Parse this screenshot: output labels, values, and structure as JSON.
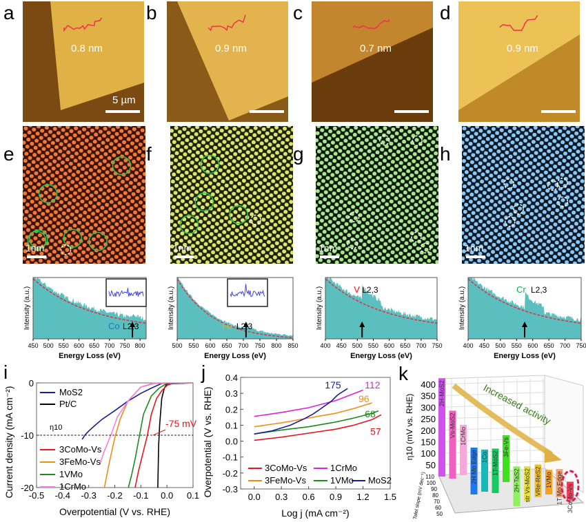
{
  "panel_letters": [
    "a",
    "b",
    "c",
    "d",
    "e",
    "f",
    "g",
    "h",
    "i",
    "j",
    "k"
  ],
  "afm": [
    {
      "letter": "a",
      "height_label": "0.8 nm",
      "scale_label": "5 µm"
    },
    {
      "letter": "b",
      "height_label": "0.9 nm",
      "scale_label": ""
    },
    {
      "letter": "c",
      "height_label": "0.7 nm",
      "scale_label": ""
    },
    {
      "letter": "d",
      "height_label": "0.9 nm",
      "scale_label": ""
    }
  ],
  "stem": [
    {
      "letter": "e",
      "scale_label": "1nm",
      "palette": {
        "bg": "#3a1206",
        "dot": "#f07a3a"
      },
      "green_circles": 6,
      "dashed_circles": 1
    },
    {
      "letter": "f",
      "scale_label": "1nm",
      "palette": {
        "bg": "#1c2208",
        "dot": "#dfe46a"
      },
      "green_circles": 4,
      "dashed_circles": 1
    },
    {
      "letter": "g",
      "scale_label": "1nm",
      "palette": {
        "bg": "#0b1808",
        "dot": "#a8e690"
      },
      "green_circles": 0,
      "dashed_circles": 6
    },
    {
      "letter": "h",
      "scale_label": "1nm",
      "palette": {
        "bg": "#0a1826",
        "dot": "#8cc8f4"
      },
      "green_circles": 0,
      "dashed_circles": 6
    }
  ],
  "chart_data": [
    {
      "panel": "e",
      "type": "area",
      "element": "Co",
      "edge": "L2,3",
      "element_color": "#1f78c8",
      "ylabel": "Intensity (a.u.)",
      "xlabel": "Energy Loss (eV)",
      "xlim": [
        450,
        820
      ],
      "xticks": [
        450,
        500,
        550,
        600,
        650,
        700,
        750,
        800
      ],
      "edge_energy": 775,
      "inset": true
    },
    {
      "panel": "f",
      "type": "area",
      "element": "Fe",
      "edge": "L2,3",
      "element_color": "#f0b400",
      "ylabel": "Intensity (a.u.)",
      "xlabel": "Energy Loss (eV)",
      "xlim": [
        500,
        850
      ],
      "xticks": [
        500,
        550,
        600,
        650,
        700,
        750,
        800,
        850
      ],
      "edge_energy": 708,
      "inset": true
    },
    {
      "panel": "g",
      "type": "area",
      "element": "V",
      "edge": "L2,3",
      "element_color": "#e8141e",
      "ylabel": "Intensity (a.u.)",
      "xlabel": "Energy Loss (eV)",
      "xlim": [
        400,
        750
      ],
      "xticks": [
        400,
        450,
        500,
        550,
        600,
        650,
        700,
        750
      ],
      "edge_energy": 515,
      "inset": false
    },
    {
      "panel": "h",
      "type": "area",
      "element": "Cr",
      "edge": "L2,3",
      "element_color": "#1aa84a",
      "ylabel": "Intensity (a.u.)",
      "xlabel": "Energy Loss (eV)",
      "xlim": [
        400,
        750
      ],
      "xticks": [
        400,
        450,
        500,
        550,
        600,
        650,
        700,
        750
      ],
      "edge_energy": 575,
      "inset": false
    },
    {
      "panel": "i",
      "type": "line",
      "xlabel": "Overpotential (V vs. RHE)",
      "ylabel": "Current density (mA cm⁻²)",
      "xlim": [
        -0.5,
        0.1
      ],
      "ylim": [
        -20,
        0
      ],
      "xticks": [
        "-0.5",
        "-0.4",
        "-0.3",
        "-0.2",
        "-0.1",
        "0.0",
        "0.1"
      ],
      "yticks": [
        "0",
        "-10",
        "-20"
      ],
      "reference_line": {
        "y": -10,
        "label": "η10"
      },
      "annotation": "-75 mV",
      "series": [
        {
          "name": "MoS2",
          "color": "#1a1a9a",
          "points": [
            [
              0.1,
              0
            ],
            [
              -0.02,
              -0.1
            ],
            [
              -0.06,
              -1
            ],
            [
              -0.1,
              -2
            ],
            [
              -0.15,
              -3.5
            ],
            [
              -0.2,
              -5.3
            ],
            [
              -0.25,
              -7
            ],
            [
              -0.28,
              -8.3
            ],
            [
              -0.3,
              -9.2
            ],
            [
              -0.315,
              -10
            ],
            [
              -0.325,
              -10.8
            ]
          ]
        },
        {
          "name": "Pt/C",
          "color": "#000000",
          "points": [
            [
              0.1,
              0
            ],
            [
              0.0,
              -0.2
            ],
            [
              -0.01,
              -1
            ],
            [
              -0.02,
              -3
            ],
            [
              -0.028,
              -8
            ],
            [
              -0.032,
              -12
            ],
            [
              -0.035,
              -20
            ]
          ]
        },
        {
          "name": "3CoMo-Vs",
          "color": "#e8141e",
          "points": [
            [
              0.1,
              0
            ],
            [
              0.02,
              -0.1
            ],
            [
              0,
              -0.5
            ],
            [
              -0.02,
              -1.5
            ],
            [
              -0.04,
              -3
            ],
            [
              -0.06,
              -6
            ],
            [
              -0.075,
              -10
            ],
            [
              -0.09,
              -13
            ],
            [
              -0.11,
              -17
            ],
            [
              -0.122,
              -20
            ]
          ]
        },
        {
          "name": "3FeMo-Vs",
          "color": "#f08c14",
          "points": [
            [
              0.1,
              0
            ],
            [
              -0.05,
              -0.1
            ],
            [
              -0.1,
              -0.8
            ],
            [
              -0.15,
              -3.5
            ],
            [
              -0.18,
              -7
            ],
            [
              -0.2,
              -10.5
            ],
            [
              -0.22,
              -15
            ],
            [
              -0.24,
              -20
            ]
          ]
        },
        {
          "name": "1VMo",
          "color": "#1a8a1a",
          "points": [
            [
              0.1,
              0
            ],
            [
              0,
              -0.1
            ],
            [
              -0.03,
              -1
            ],
            [
              -0.06,
              -2.5
            ],
            [
              -0.09,
              -6
            ],
            [
              -0.105,
              -10
            ],
            [
              -0.12,
              -14
            ],
            [
              -0.135,
              -17.5
            ],
            [
              -0.148,
              -20
            ]
          ]
        },
        {
          "name": "1CrMo",
          "color": "#f080e8",
          "points": [
            [
              0.1,
              0
            ],
            [
              -0.05,
              0
            ],
            [
              -0.1,
              -0.8
            ],
            [
              -0.15,
              -3.5
            ],
            [
              -0.19,
              -6.5
            ],
            [
              -0.215,
              -10
            ],
            [
              -0.24,
              -13
            ],
            [
              -0.258,
              -15.6
            ]
          ]
        }
      ]
    },
    {
      "panel": "j",
      "type": "line",
      "xlabel": "Log j (mA cm⁻²)",
      "ylabel": "Overpotential (V vs. RHE)",
      "xlim": [
        -0.15,
        1.5
      ],
      "ylim": [
        -0.3,
        0.4
      ],
      "xticks": [
        "0.0",
        "0.3",
        "0.6",
        "0.9",
        "1.2",
        "1.5"
      ],
      "yticks": [
        "0.4",
        "0.3",
        "0.2",
        "0.1",
        "0.0",
        "-0.1",
        "-0.2",
        "-0.3"
      ],
      "series": [
        {
          "name": "3CoMo-Vs",
          "color": "#e8141e",
          "tafel": "57",
          "points": [
            [
              0,
              0.005
            ],
            [
              0.3,
              0.025
            ],
            [
              0.6,
              0.05
            ],
            [
              0.9,
              0.075
            ],
            [
              1.1,
              0.1
            ],
            [
              1.3,
              0.135
            ],
            [
              1.4,
              0.165
            ]
          ]
        },
        {
          "name": "3FeMo-Vs",
          "color": "#f08c14",
          "tafel": "96",
          "points": [
            [
              0,
              0.09
            ],
            [
              0.3,
              0.115
            ],
            [
              0.6,
              0.145
            ],
            [
              0.9,
              0.175
            ],
            [
              1.1,
              0.205
            ],
            [
              1.3,
              0.24
            ]
          ]
        },
        {
          "name": "1CrMo",
          "color": "#e020e0",
          "tafel": "112",
          "points": [
            [
              0,
              0.155
            ],
            [
              0.3,
              0.18
            ],
            [
              0.6,
              0.21
            ],
            [
              0.9,
              0.255
            ],
            [
              1.2,
              0.32
            ]
          ]
        },
        {
          "name": "1VMo",
          "color": "#1a8a1a",
          "tafel": "68",
          "points": [
            [
              0,
              0.045
            ],
            [
              0.3,
              0.07
            ],
            [
              0.6,
              0.09
            ],
            [
              0.9,
              0.12
            ],
            [
              1.1,
              0.145
            ],
            [
              1.3,
              0.175
            ],
            [
              1.37,
              0.19
            ]
          ]
        },
        {
          "name": "MoS2",
          "color": "#1a1a9a",
          "tafel": "175",
          "points": [
            [
              0,
              0.045
            ],
            [
              0.2,
              0.065
            ],
            [
              0.4,
              0.1
            ],
            [
              0.55,
              0.14
            ],
            [
              0.65,
              0.17
            ],
            [
              0.75,
              0.21
            ],
            [
              0.85,
              0.25
            ],
            [
              0.92,
              0.29
            ],
            [
              1.03,
              0.33
            ]
          ]
        }
      ]
    },
    {
      "panel": "k",
      "type": "bar",
      "zlabel": "η10 (mV vs. RHE)",
      "ylabel": "Tafel slope (mV dec⁻¹)",
      "zticks": [
        "400",
        "350",
        "300",
        "250",
        "200",
        "150",
        "100",
        "50"
      ],
      "yticks": [
        "110",
        "100",
        "90",
        "80",
        "70",
        "60",
        "50"
      ],
      "annotation": "Increased activity",
      "categories": [
        "2H-MoS2",
        "Vs-MoS2",
        "1CrMo",
        "2H Mo Edge",
        "1Co",
        "1T-MoS2",
        "3Fe-Vs",
        "2H-TaS2",
        "str Vs-MoS2",
        "VRe-ReS2",
        "1VMo",
        "1T Mo Edge",
        "3CoMo-Vs"
      ],
      "values": [
        420,
        290,
        215,
        200,
        180,
        190,
        200,
        170,
        150,
        140,
        105,
        120,
        75
      ],
      "colors": [
        "#d050f0",
        "#f060c0",
        "#f8a8d8",
        "#1e78f0",
        "#18b8b8",
        "#18c860",
        "#40e020",
        "#90f060",
        "#e8e040",
        "#f0c030",
        "#f8a020",
        "#f8a070",
        "#f04060"
      ]
    }
  ]
}
